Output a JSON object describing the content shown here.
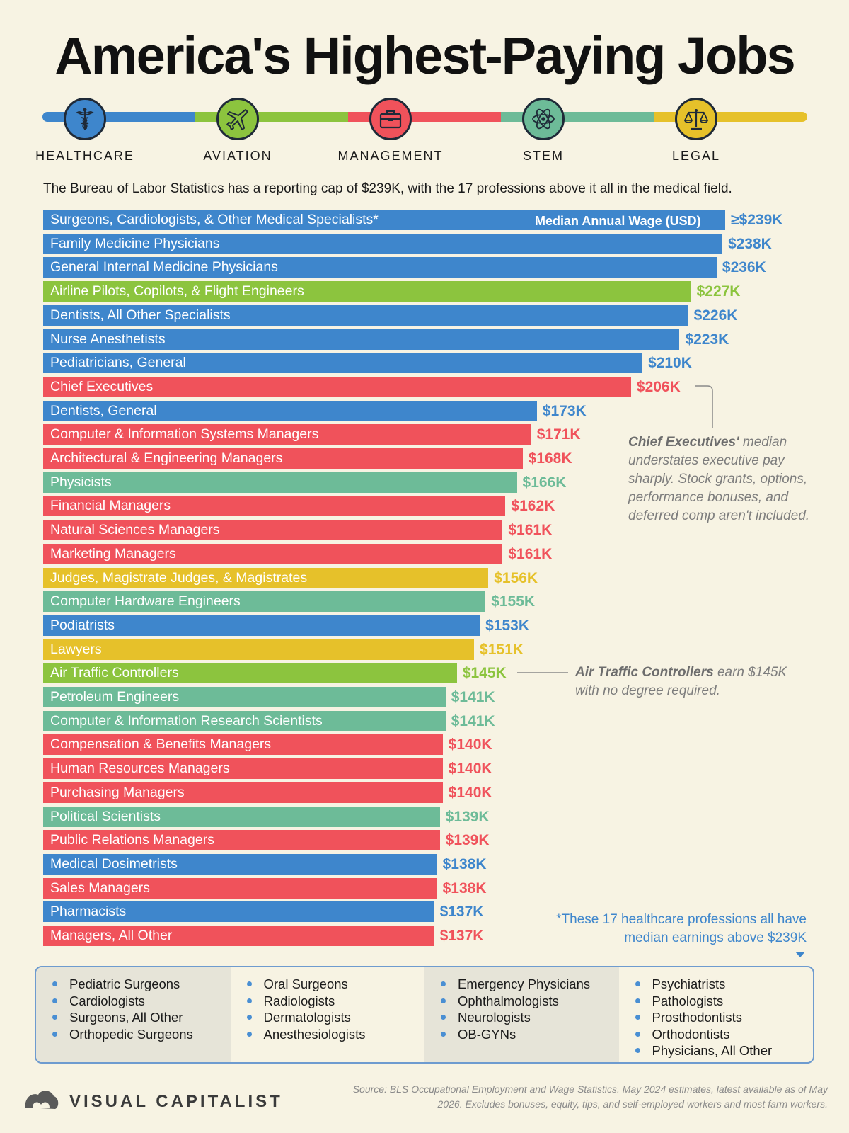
{
  "title": "America's Highest-Paying Jobs",
  "categories": [
    {
      "name": "HEALTHCARE",
      "color": "#3e86cc",
      "icon": "caduceus-icon"
    },
    {
      "name": "AVIATION",
      "color": "#8cc43e",
      "icon": "airplane-icon"
    },
    {
      "name": "MANAGEMENT",
      "color": "#f0525b",
      "icon": "briefcase-icon"
    },
    {
      "name": "STEM",
      "color": "#6dbb98",
      "icon": "atom-icon"
    },
    {
      "name": "LEGAL",
      "color": "#e6c12a",
      "icon": "scales-icon"
    }
  ],
  "subtitle": "The Bureau of Labor Statistics has a reporting cap of $239K, with the 17 professions above it all in the medical field.",
  "in_bar_legend": "Median Annual Wage (USD)",
  "chart_data": {
    "type": "bar",
    "orientation": "horizontal",
    "title": "America's Highest-Paying Jobs",
    "value_label": "Median Annual Wage (USD)",
    "categories": [
      "Surgeons, Cardiologists, & Other Medical Specialists*",
      "Family Medicine Physicians",
      "General Internal Medicine Physicians",
      "Airline Pilots, Copilots, & Flight Engineers",
      "Dentists, All Other Specialists",
      "Nurse Anesthetists",
      "Pediatricians, General",
      "Chief Executives",
      "Dentists, General",
      "Computer & Information Systems Managers",
      "Architectural & Engineering Managers",
      "Physicists",
      "Financial Managers",
      "Natural Sciences Managers",
      "Marketing Managers",
      "Judges, Magistrate Judges, & Magistrates",
      "Computer Hardware Engineers",
      "Podiatrists",
      "Lawyers",
      "Air Traffic Controllers",
      "Petroleum Engineers",
      "Computer & Information Research Scientists",
      "Compensation & Benefits Managers",
      "Human Resources Managers",
      "Purchasing Managers",
      "Political Scientists",
      "Public Relations Managers",
      "Medical Dosimetrists",
      "Sales Managers",
      "Pharmacists",
      "Managers, All Other"
    ],
    "values": [
      239,
      238,
      236,
      227,
      226,
      223,
      210,
      206,
      173,
      171,
      168,
      166,
      162,
      161,
      161,
      156,
      155,
      153,
      151,
      145,
      141,
      141,
      140,
      140,
      140,
      139,
      139,
      138,
      138,
      137,
      137
    ],
    "value_labels": [
      "≥$239K",
      "$238K",
      "$236K",
      "$227K",
      "$226K",
      "$223K",
      "$210K",
      "$206K",
      "$173K",
      "$171K",
      "$168K",
      "$166K",
      "$162K",
      "$161K",
      "$161K",
      "$156K",
      "$155K",
      "$153K",
      "$151K",
      "$145K",
      "$141K",
      "$141K",
      "$140K",
      "$140K",
      "$140K",
      "$139K",
      "$139K",
      "$138K",
      "$138K",
      "$137K",
      "$137K"
    ],
    "sectors": [
      "HEALTHCARE",
      "HEALTHCARE",
      "HEALTHCARE",
      "AVIATION",
      "HEALTHCARE",
      "HEALTHCARE",
      "HEALTHCARE",
      "MANAGEMENT",
      "HEALTHCARE",
      "MANAGEMENT",
      "MANAGEMENT",
      "STEM",
      "MANAGEMENT",
      "MANAGEMENT",
      "MANAGEMENT",
      "LEGAL",
      "STEM",
      "HEALTHCARE",
      "LEGAL",
      "AVIATION",
      "STEM",
      "STEM",
      "MANAGEMENT",
      "MANAGEMENT",
      "MANAGEMENT",
      "STEM",
      "MANAGEMENT",
      "HEALTHCARE",
      "MANAGEMENT",
      "HEALTHCARE",
      "MANAGEMENT"
    ],
    "unit": "thousand USD",
    "xlim": [
      0,
      239
    ],
    "grid": false,
    "legend": "none"
  },
  "notes": {
    "chief_bold": "Chief Executives'",
    "chief_rest": " median understates executive pay sharply. Stock grants, options, performance bonuses, and deferred comp aren't included.",
    "atc_bold": "Air Traffic Controllers",
    "atc_rest": " earn $145K with no degree required."
  },
  "footnote": "*These 17 healthcare professions all have median earnings above $239K",
  "specialists": [
    [
      "Pediatric Surgeons",
      "Cardiologists",
      "Surgeons, All Other",
      "Orthopedic Surgeons"
    ],
    [
      "Oral Surgeons",
      "Radiologists",
      "Dermatologists",
      "Anesthesiologists"
    ],
    [
      "Emergency Physicians",
      "Ophthalmologists",
      "Neurologists",
      "OB-GYNs"
    ],
    [
      "Psychiatrists",
      "Pathologists",
      "Prosthodontists",
      "Orthodontists",
      "Physicians, All Other"
    ]
  ],
  "brand": "VISUAL CAPITALIST",
  "source": "Source: BLS Occupational Employment and Wage Statistics. May 2024 estimates, latest available as of May 2026. Excludes bonuses, equity, tips, and self-employed workers and most farm workers."
}
